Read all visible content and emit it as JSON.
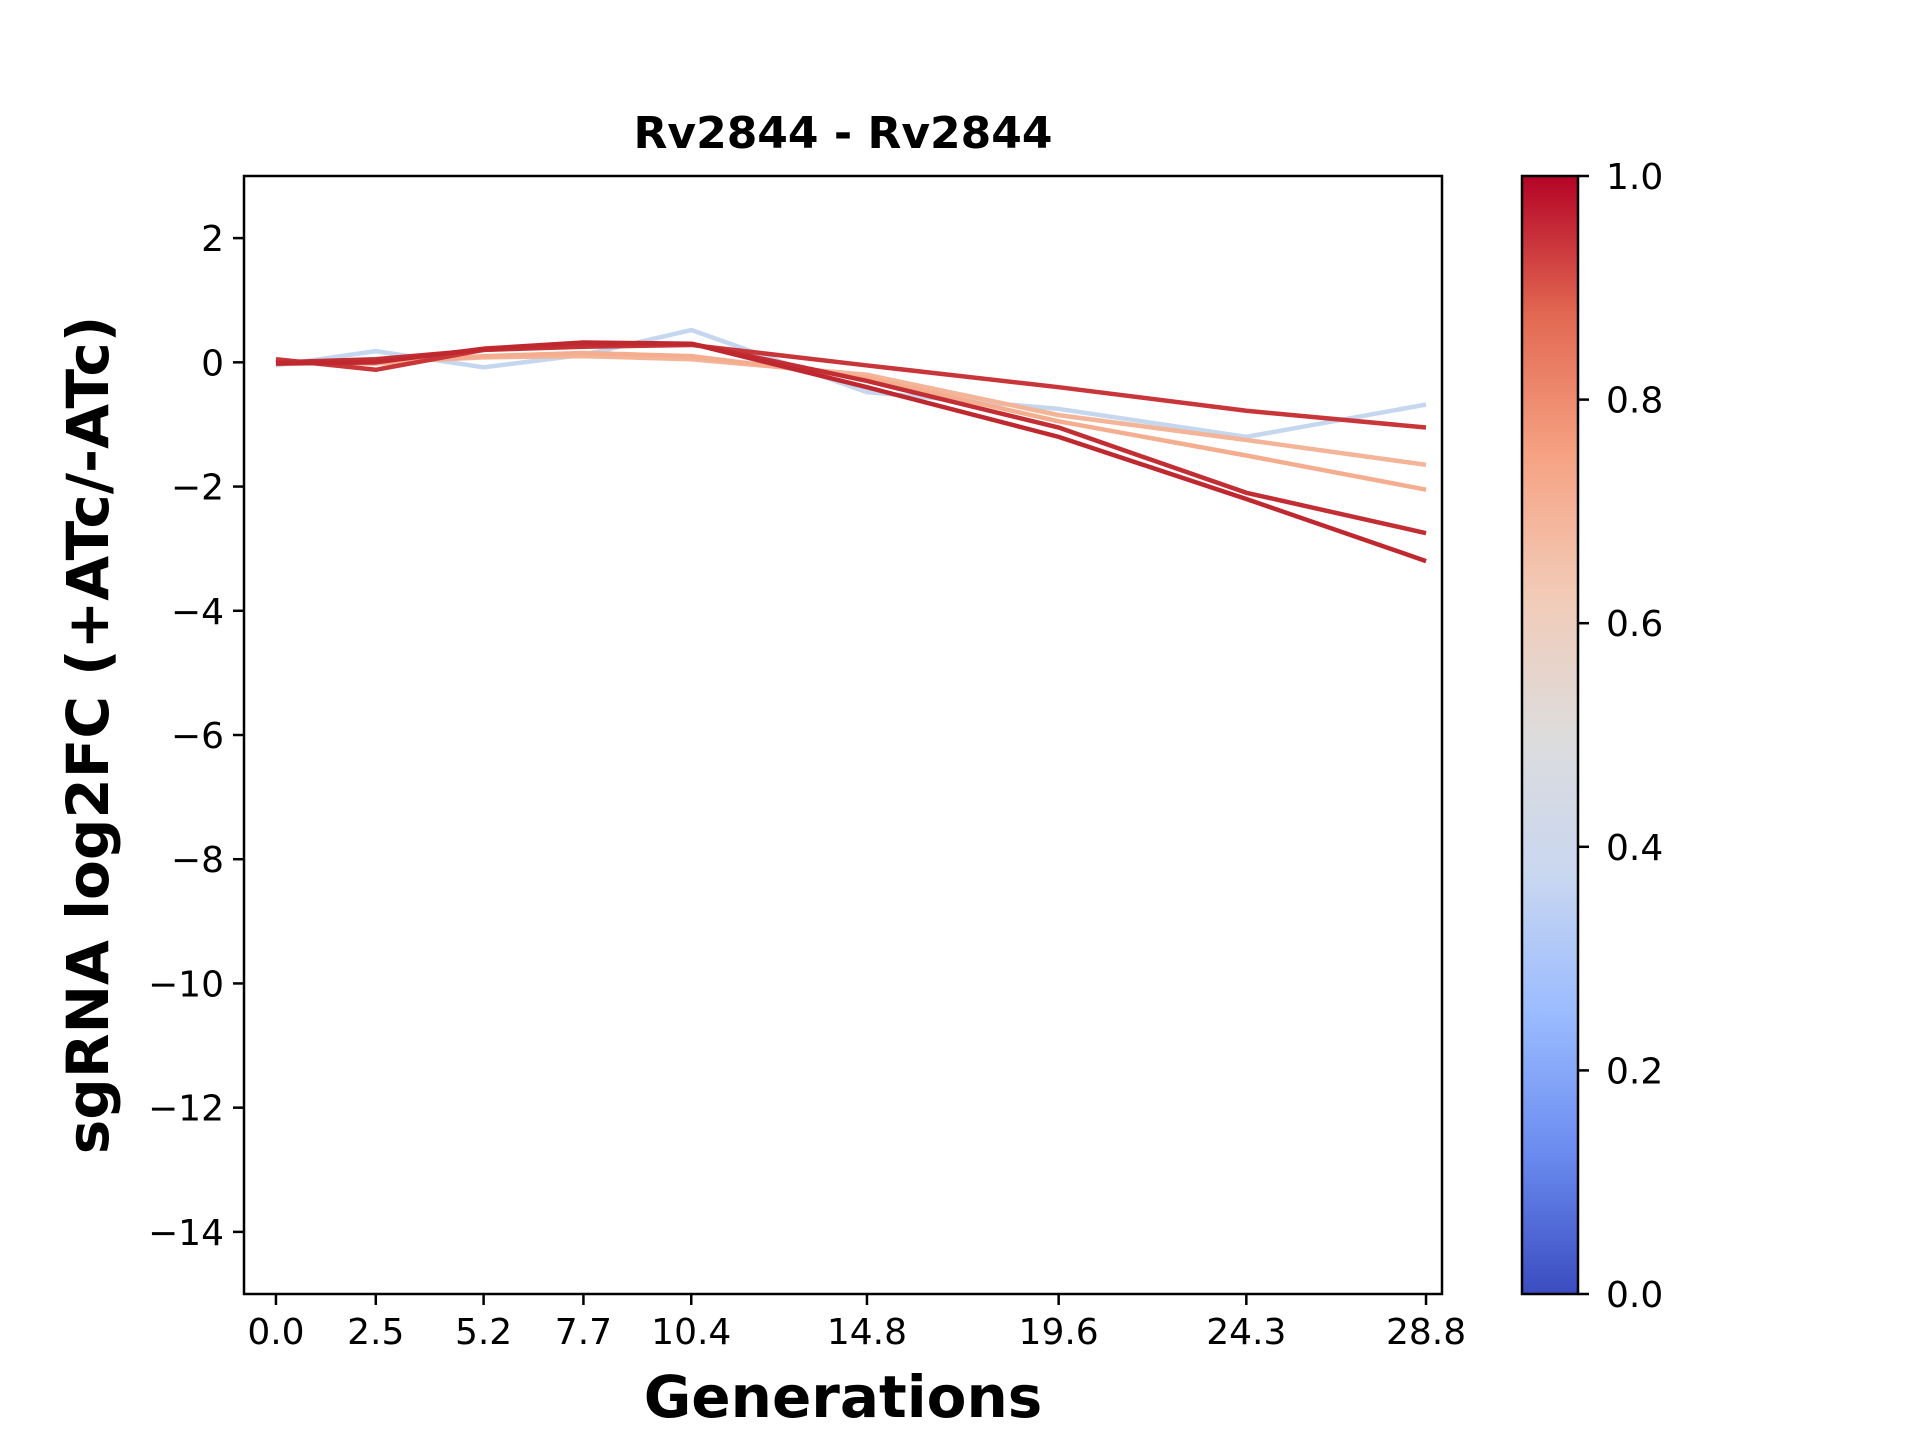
{
  "chart_data": {
    "type": "line",
    "title": "Rv2844 - Rv2844",
    "xlabel": "Generations",
    "ylabel": "sgRNA log2FC (+ATc/-ATc)",
    "x": [
      0.0,
      2.5,
      5.2,
      7.7,
      10.4,
      14.8,
      19.6,
      24.3,
      28.8
    ],
    "x_tick_labels": [
      "0.0",
      "2.5",
      "5.2",
      "7.7",
      "10.4",
      "14.8",
      "19.6",
      "24.3",
      "28.8"
    ],
    "ylim": [
      -15,
      3
    ],
    "y_ticks": [
      2,
      0,
      -2,
      -4,
      -6,
      -8,
      -10,
      -12,
      -14
    ],
    "y_tick_labels": [
      "2",
      "0",
      "−2",
      "−4",
      "−6",
      "−8",
      "−10",
      "−12",
      "−14"
    ],
    "series": [
      {
        "color_value": 0.42,
        "color": "#c5d6ef",
        "values": [
          -0.05,
          0.18,
          -0.08,
          0.12,
          0.52,
          -0.48,
          -0.75,
          -1.2,
          -0.68
        ]
      },
      {
        "color_value": 0.72,
        "color": "#f4b497",
        "values": [
          -0.02,
          0.0,
          0.08,
          0.1,
          0.05,
          -0.2,
          -0.85,
          -1.25,
          -1.65
        ]
      },
      {
        "color_value": 0.7,
        "color": "#f5ad8f",
        "values": [
          0.0,
          -0.02,
          0.1,
          0.15,
          0.1,
          -0.25,
          -0.95,
          -1.5,
          -2.05
        ]
      },
      {
        "color_value": 0.92,
        "color": "#c9363a",
        "values": [
          0.05,
          -0.12,
          0.2,
          0.25,
          0.28,
          -0.05,
          -0.4,
          -0.78,
          -1.05
        ]
      },
      {
        "color_value": 0.95,
        "color": "#c22e33",
        "values": [
          0.0,
          0.05,
          0.2,
          0.28,
          0.3,
          -0.3,
          -1.05,
          -2.1,
          -2.75
        ]
      },
      {
        "color_value": 0.96,
        "color": "#c0282f",
        "values": [
          -0.02,
          0.0,
          0.22,
          0.32,
          0.3,
          -0.4,
          -1.2,
          -2.2,
          -3.2
        ]
      }
    ],
    "colorbar": {
      "range": [
        0.0,
        1.0
      ],
      "ticks": [
        "0.0",
        "0.2",
        "0.4",
        "0.6",
        "0.8",
        "1.0"
      ],
      "colormap": "coolwarm",
      "stops": [
        "#3b4cc0",
        "#6a8bef",
        "#9abbff",
        "#c9d7f0",
        "#dddcdc",
        "#f2cbb7",
        "#f6a283",
        "#e26952",
        "#b40426"
      ]
    },
    "grid": false,
    "legend": "none"
  }
}
